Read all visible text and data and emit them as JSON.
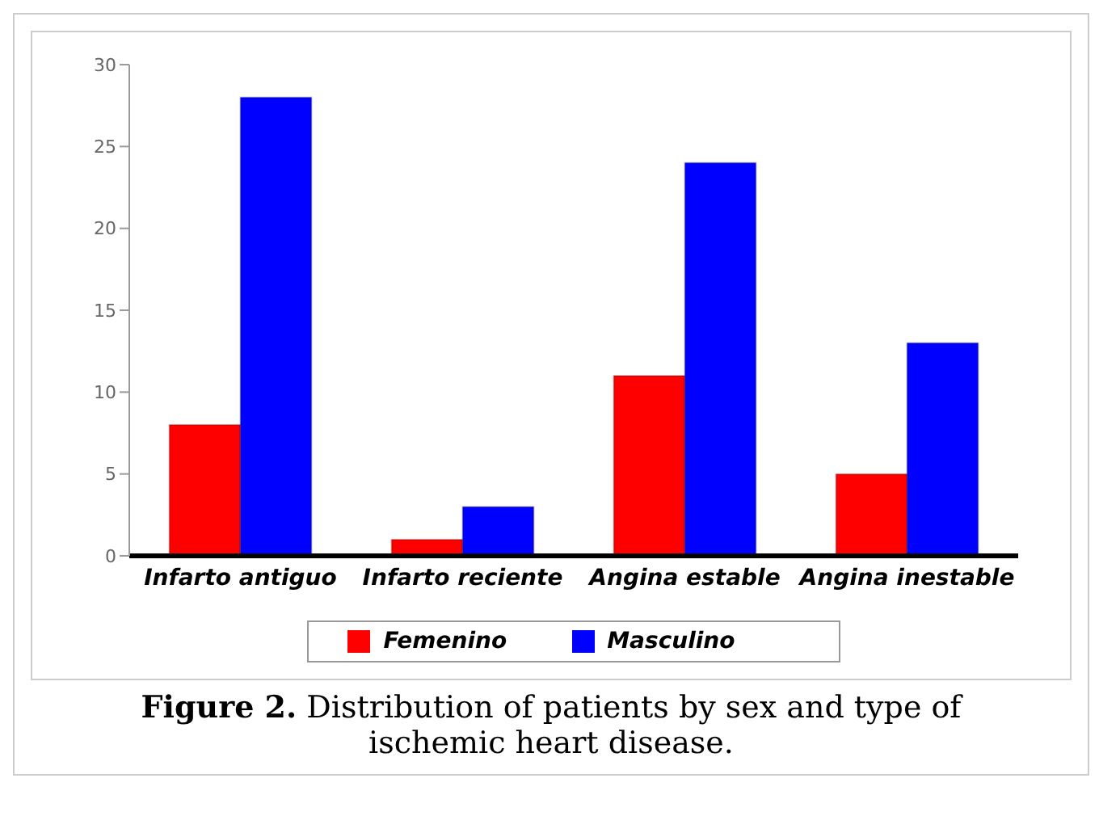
{
  "chart_data": {
    "type": "bar",
    "title": "Figure 2. Distribution of patients by sex and type of ischemic heart disease.",
    "categories": [
      "Infarto antiguo",
      "Infarto reciente",
      "Angina estable",
      "Angina inestable"
    ],
    "series": [
      {
        "name": "Femenino",
        "color": "#ff0000",
        "values": [
          8,
          1,
          11,
          5
        ]
      },
      {
        "name": "Masculino",
        "color": "#0000ff",
        "values": [
          28,
          3,
          24,
          13
        ]
      }
    ],
    "ylim": [
      0,
      30
    ],
    "yticks": [
      0,
      5,
      10,
      15,
      20,
      25,
      30
    ],
    "grid": false,
    "legend": "bottom"
  }
}
